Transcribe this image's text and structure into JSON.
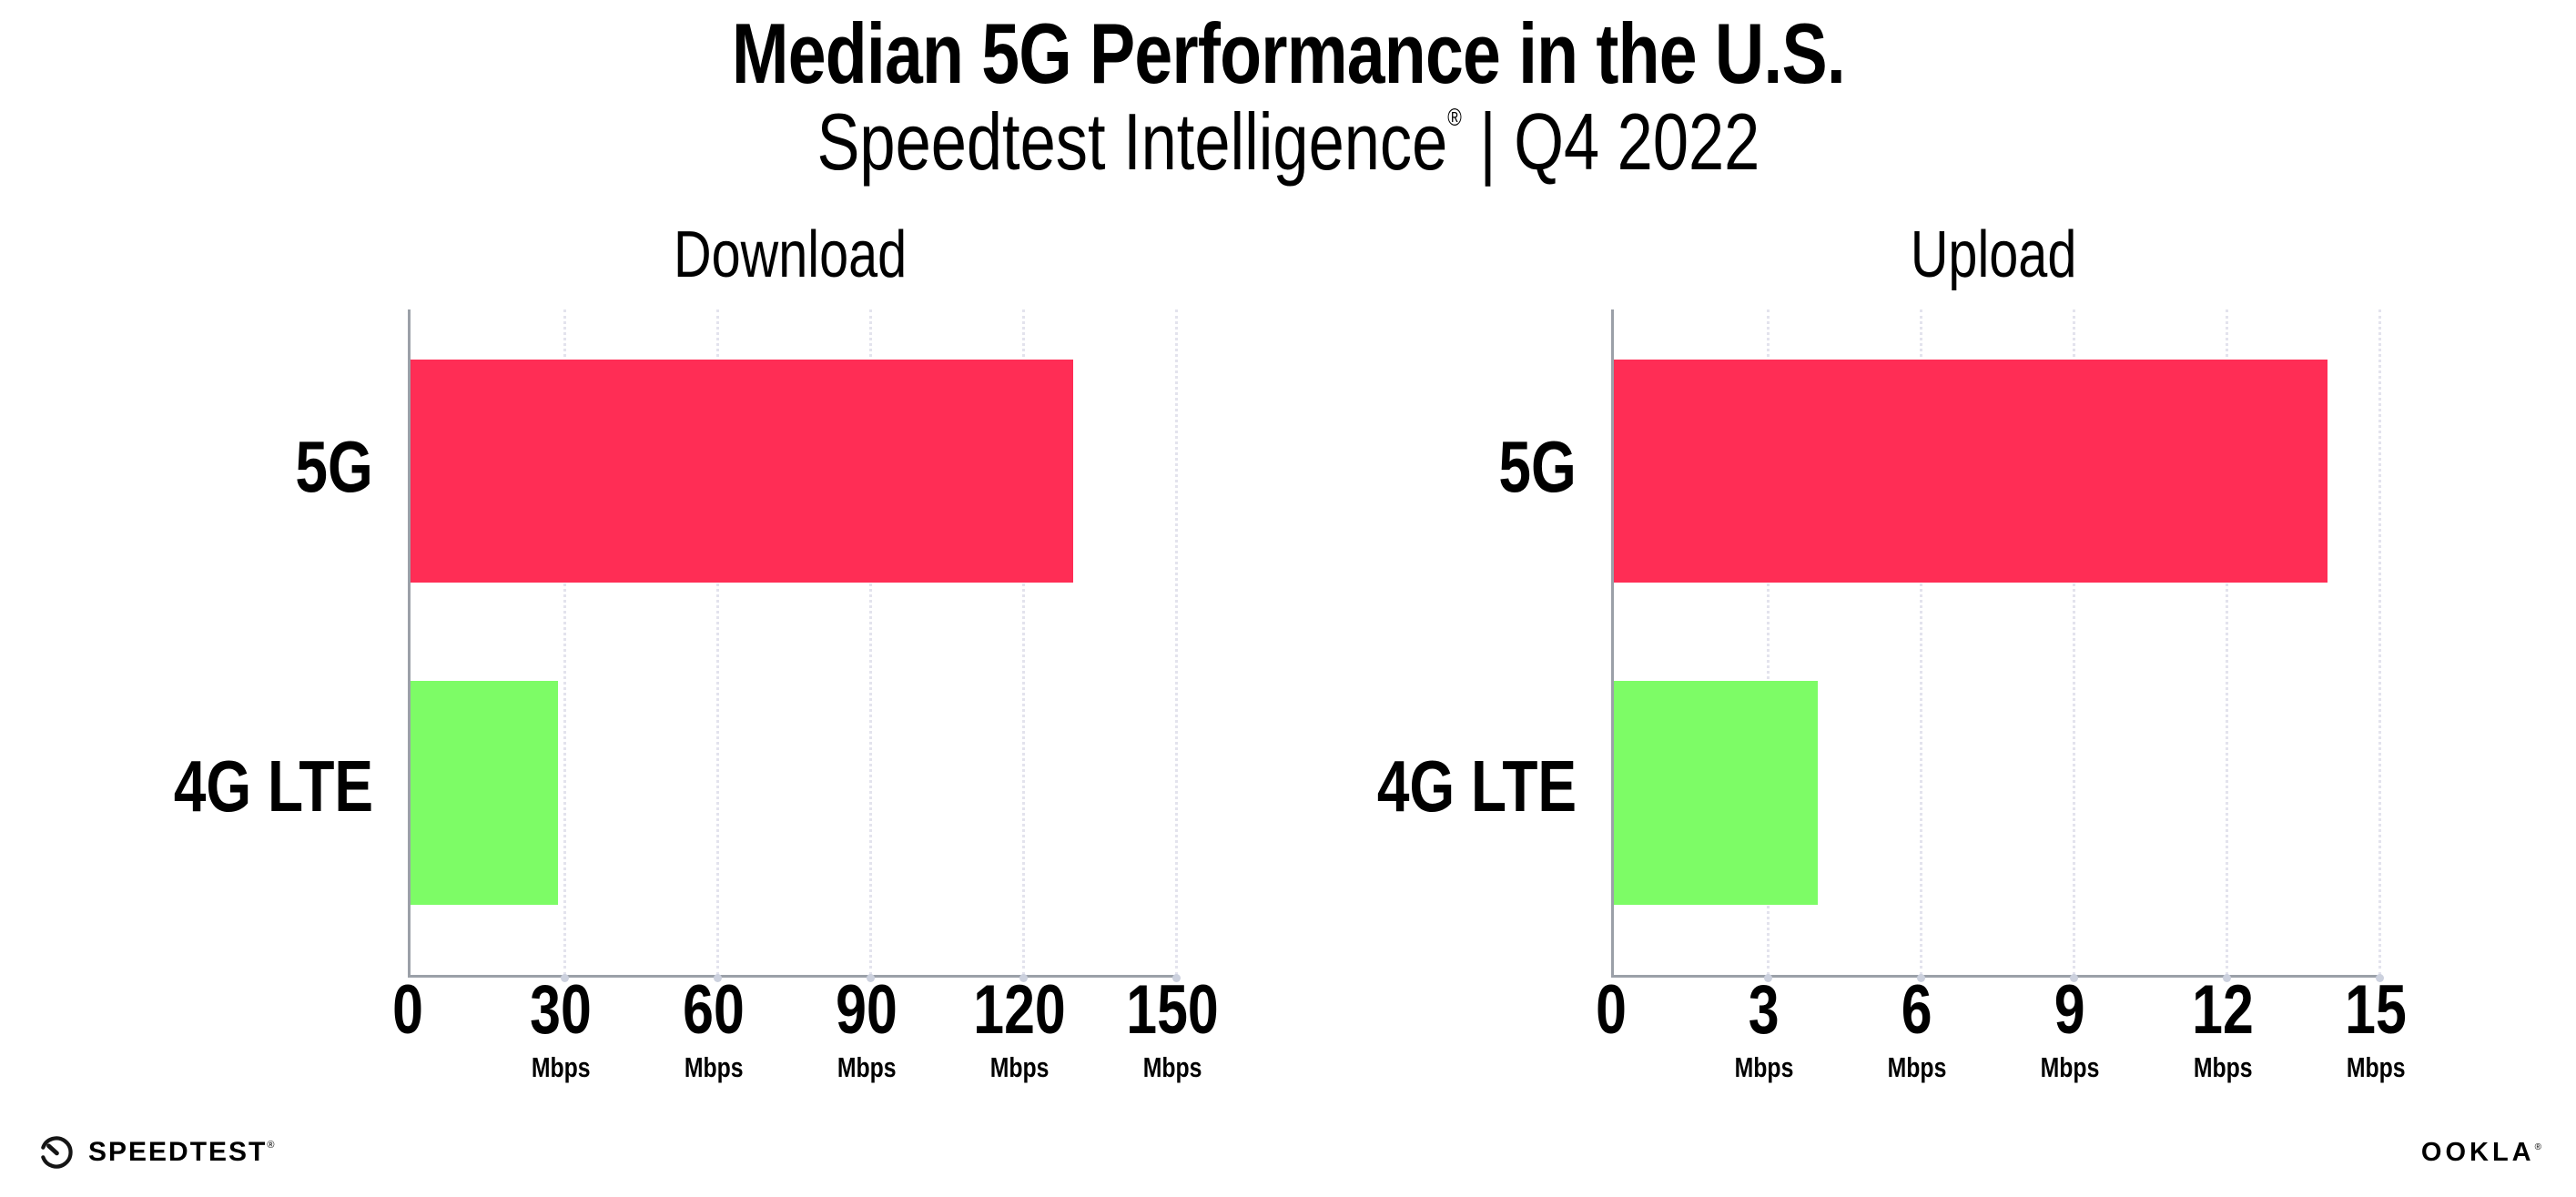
{
  "header": {
    "title": "Median 5G Performance in the U.S.",
    "subtitle_brand": "Speedtest Intelligence",
    "subtitle_reg": "®",
    "subtitle_rest": " | Q4 2022"
  },
  "chart_data": [
    {
      "type": "bar",
      "orientation": "horizontal",
      "title": "Download",
      "categories": [
        "5G",
        "4G LTE"
      ],
      "values": [
        130,
        29
      ],
      "unit": "Mbps",
      "xlim": [
        0,
        150
      ],
      "xticks": [
        0,
        30,
        60,
        90,
        120,
        150
      ],
      "tick_labels": [
        {
          "value": "0",
          "unit": ""
        },
        {
          "value": "30",
          "unit": "Mbps"
        },
        {
          "value": "60",
          "unit": "Mbps"
        },
        {
          "value": "90",
          "unit": "Mbps"
        },
        {
          "value": "120",
          "unit": "Mbps"
        },
        {
          "value": "150",
          "unit": "Mbps"
        }
      ],
      "bar_colors": [
        "#ff2d55",
        "#7dfc66"
      ],
      "grid": "vertical-dotted",
      "legend": "none"
    },
    {
      "type": "bar",
      "orientation": "horizontal",
      "title": "Upload",
      "categories": [
        "5G",
        "4G LTE"
      ],
      "values": [
        14,
        4
      ],
      "unit": "Mbps",
      "xlim": [
        0,
        15
      ],
      "xticks": [
        0,
        3,
        6,
        9,
        12,
        15
      ],
      "tick_labels": [
        {
          "value": "0",
          "unit": ""
        },
        {
          "value": "3",
          "unit": "Mbps"
        },
        {
          "value": "6",
          "unit": "Mbps"
        },
        {
          "value": "9",
          "unit": "Mbps"
        },
        {
          "value": "12",
          "unit": "Mbps"
        },
        {
          "value": "15",
          "unit": "Mbps"
        }
      ],
      "bar_colors": [
        "#ff2d55",
        "#7dfc66"
      ],
      "grid": "vertical-dotted",
      "legend": "none"
    }
  ],
  "footer": {
    "speedtest_label": "SPEEDTEST",
    "speedtest_reg": "®",
    "ookla_label": "OOKLA",
    "ookla_reg": "®"
  },
  "colors": {
    "bar_5g": "#ff2d55",
    "bar_4g_lte": "#7dfc66",
    "axis": "#9ba0a8",
    "gridline": "#e3e3ed",
    "text": "#000000",
    "background": "#ffffff"
  }
}
